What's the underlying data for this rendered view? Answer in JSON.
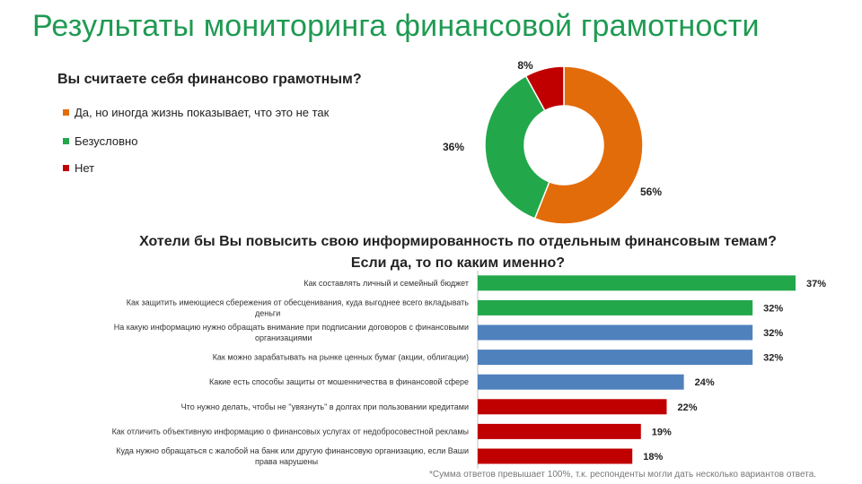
{
  "page": {
    "title": "Результаты мониторинга финансовой грамотности",
    "footnote": "*Сумма ответов превышает 100%, т.к. респонденты могли дать несколько вариантов ответа."
  },
  "chart_data": [
    {
      "type": "pie",
      "title": "Вы считаете себя финансово  грамотным?",
      "donut": true,
      "legend_position": "left",
      "slices": [
        {
          "label": "Да, но иногда жизнь показывает, что это не так",
          "value": 56,
          "value_label": "56%",
          "color": "#e36c0a"
        },
        {
          "label": "Безусловно",
          "value": 36,
          "value_label": "36%",
          "color": "#22a84a"
        },
        {
          "label": "Нет",
          "value": 8,
          "value_label": "8%",
          "color": "#c00000"
        }
      ]
    },
    {
      "type": "bar",
      "orientation": "horizontal",
      "title": "Хотели бы Вы повысить свою информированность по отдельным финансовым темам? Если да, то по каким именно?",
      "title_lines": [
        "Хотели бы Вы повысить свою информированность по отдельным финансовым темам?",
        "Если да, то по каким именно?"
      ],
      "xlim": [
        0,
        40
      ],
      "grid": false,
      "categories": [
        [
          "Как составлять  личный  и  семейный  бюджет"
        ],
        [
          "Как защитить  имеющиеся  сбережения от обесценивания, куда выгоднее всего вкладывать",
          "деньги"
        ],
        [
          "На какую информацию нужно обращать внимание при подписании договоров  с финансовыми",
          "организациями"
        ],
        [
          "Как можно зарабатывать на рынке ценных бумаг (акции, облигации)"
        ],
        [
          "Какие есть способы защиты от мошенничества в финансовой сфере"
        ],
        [
          "Что нужно делать, чтобы  не \"увязнуть\"  в долгах при пользовании кредитами"
        ],
        [
          "Как отличить  объективную  информацию  о финансовых услугах от недобросовестной рекламы"
        ],
        [
          "Куда нужно обращаться с жалобой на банк или другую финансовую организацию, если Ваши",
          "права нарушены"
        ]
      ],
      "values": [
        37,
        32,
        32,
        32,
        24,
        22,
        19,
        18
      ],
      "value_labels": [
        "37%",
        "32%",
        "32%",
        "32%",
        "24%",
        "22%",
        "19%",
        "18%"
      ],
      "colors": [
        "#22a84a",
        "#22a84a",
        "#4f81bd",
        "#4f81bd",
        "#4f81bd",
        "#c00000",
        "#c00000",
        "#c00000"
      ]
    }
  ]
}
